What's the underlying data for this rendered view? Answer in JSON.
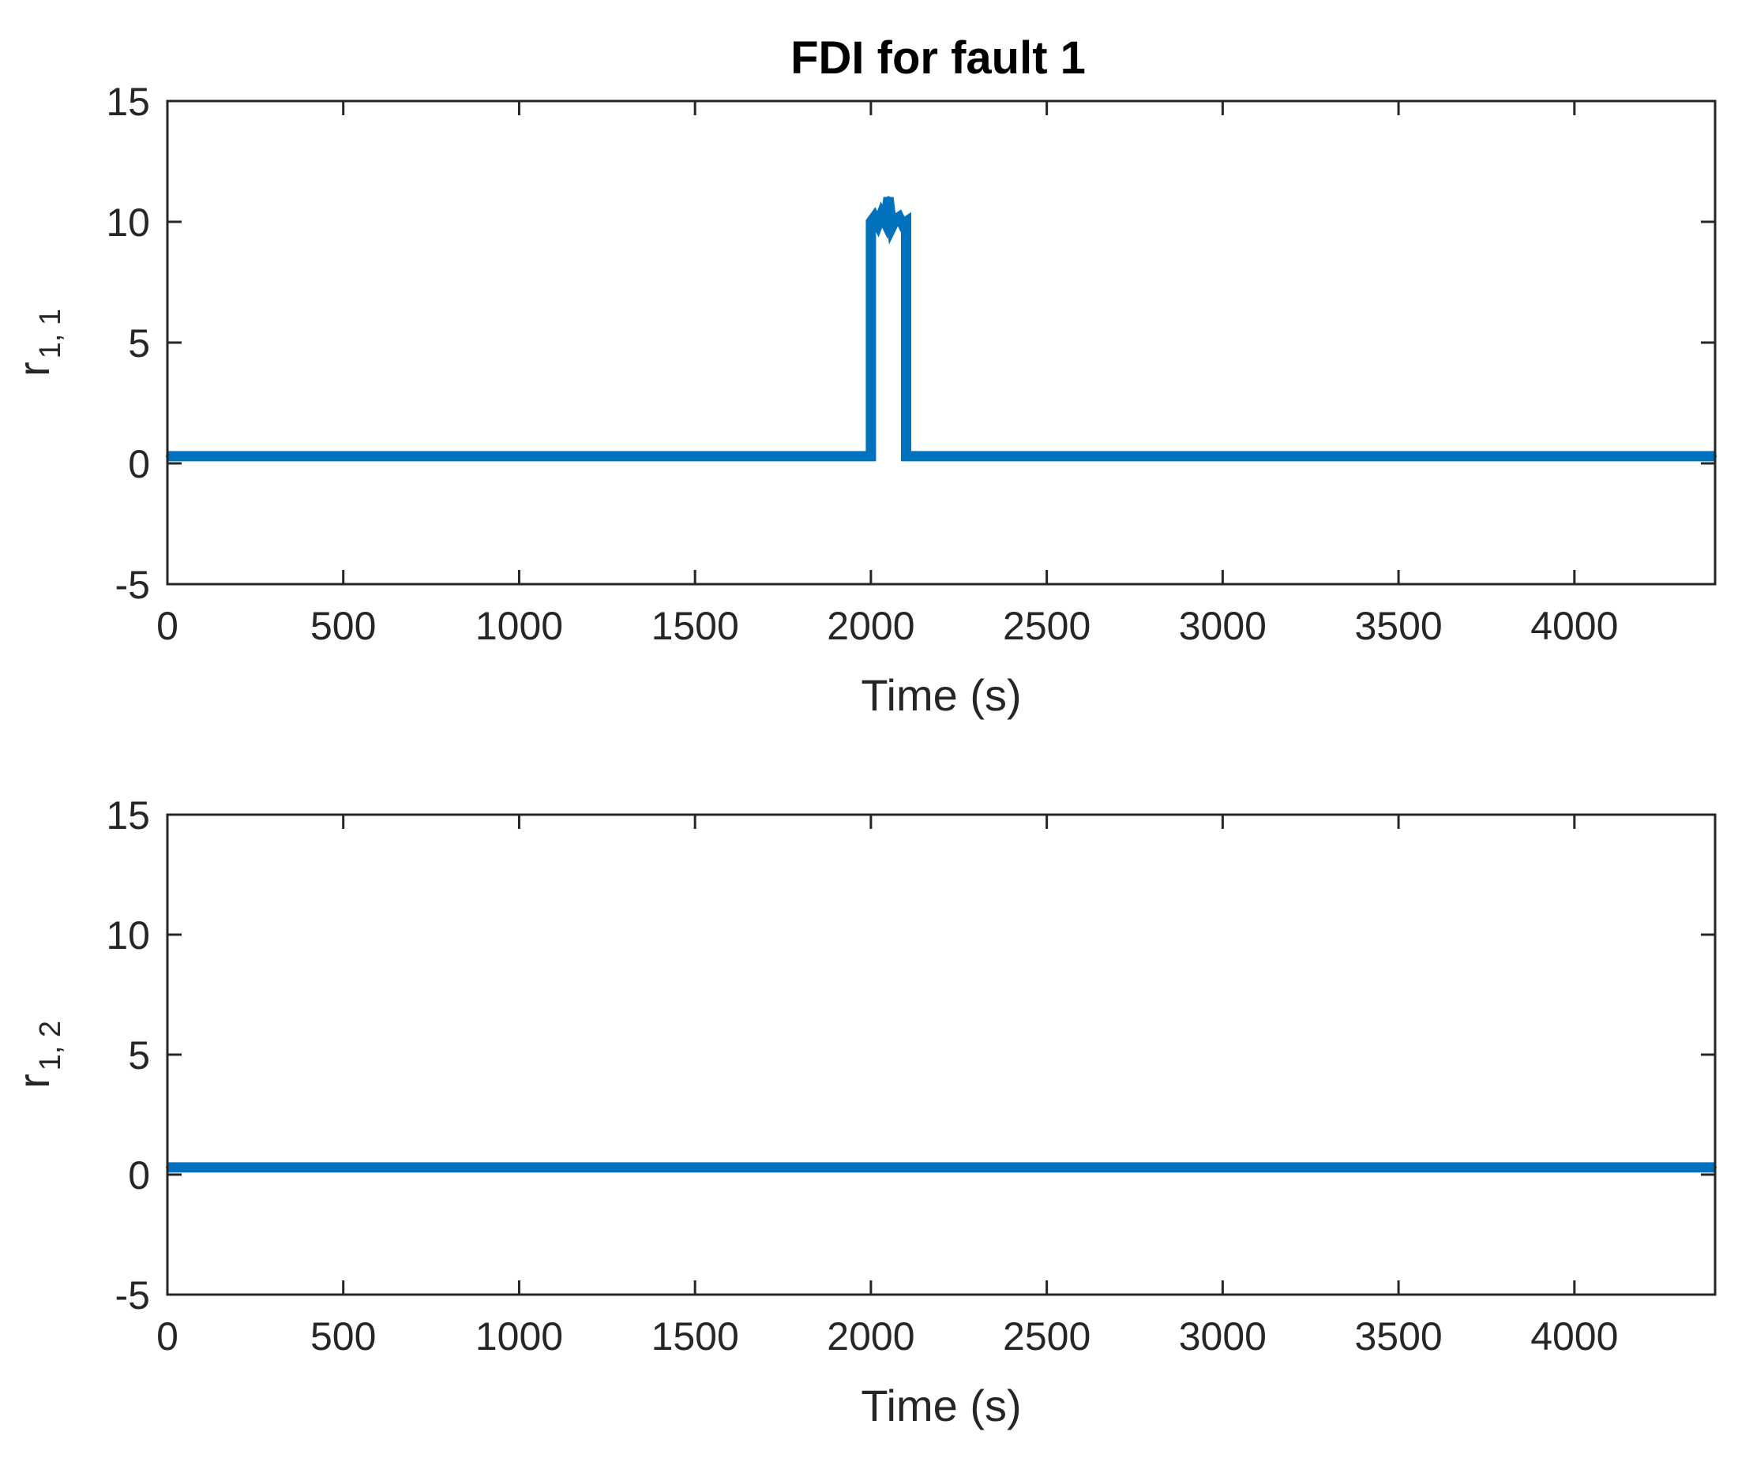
{
  "chart_data": [
    {
      "type": "line",
      "title": "FDI for fault 1",
      "xlabel": "Time (s)",
      "ylabel": {
        "base": "r",
        "subscript": "1, 1"
      },
      "xlim": [
        0,
        4400
      ],
      "ylim": [
        -5,
        15
      ],
      "xticks": [
        "0",
        "500",
        "1000",
        "1500",
        "2000",
        "2500",
        "3000",
        "3500",
        "4000"
      ],
      "yticks": [
        "-5",
        "0",
        "5",
        "10",
        "15"
      ],
      "grid": false,
      "series": [
        {
          "color": "#0072bd",
          "x": [
            0,
            2000,
            2000,
            2010,
            2020,
            2030,
            2040,
            2050,
            2060,
            2070,
            2080,
            2090,
            2100,
            2100,
            4400
          ],
          "y": [
            0.3,
            0.3,
            10.0,
            10.2,
            9.9,
            10.3,
            10.0,
            11.0,
            9.8,
            10.1,
            10.2,
            9.9,
            10.0,
            0.3,
            0.3
          ]
        }
      ]
    },
    {
      "type": "line",
      "xlabel": "Time (s)",
      "ylabel": {
        "base": "r",
        "subscript": "1, 2"
      },
      "xlim": [
        0,
        4400
      ],
      "ylim": [
        -5,
        15
      ],
      "xticks": [
        "0",
        "500",
        "1000",
        "1500",
        "2000",
        "2500",
        "3000",
        "3500",
        "4000"
      ],
      "yticks": [
        "-5",
        "0",
        "5",
        "10",
        "15"
      ],
      "grid": false,
      "series": [
        {
          "color": "#0072bd",
          "x": [
            0,
            4400
          ],
          "y": [
            0.3,
            0.3
          ]
        }
      ]
    }
  ]
}
